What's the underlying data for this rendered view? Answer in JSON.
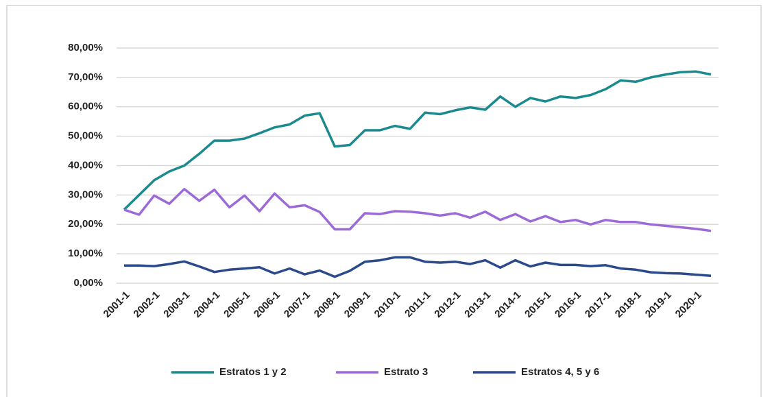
{
  "chart_data": {
    "type": "line",
    "categories": [
      "2001-1",
      null,
      "2002-1",
      null,
      "2003-1",
      null,
      "2004-1",
      null,
      "2005-1",
      null,
      "2006-1",
      null,
      "2007-1",
      null,
      "2008-1",
      null,
      "2009-1",
      null,
      "2010-1",
      null,
      "2011-1",
      null,
      "2012-1",
      null,
      "2013-1",
      null,
      "2014-1",
      null,
      "2015-1",
      null,
      "2016-1",
      null,
      "2017-1",
      null,
      "2018-1",
      null,
      "2019-1",
      null,
      "2020-1",
      null
    ],
    "series": [
      {
        "name": "Estratos 1 y 2",
        "color": "#1b8a8f",
        "values": [
          25,
          30,
          35,
          38,
          40,
          44,
          48.5,
          48.5,
          49.2,
          51,
          53,
          54,
          57,
          57.8,
          46.5,
          47,
          52,
          52,
          53.5,
          52.5,
          58,
          57.5,
          58.8,
          59.8,
          59,
          63.5,
          60,
          63,
          61.8,
          63.5,
          63,
          64,
          66,
          69,
          68.5,
          70,
          71,
          71.8,
          72,
          71
        ]
      },
      {
        "name": "Estrato 3",
        "color": "#9b6ad8",
        "values": [
          25,
          23.3,
          29.8,
          27,
          32,
          28,
          31.8,
          25.8,
          29.8,
          24.5,
          30.5,
          25.8,
          26.5,
          24.2,
          18.3,
          18.3,
          23.8,
          23.5,
          24.5,
          24.3,
          23.8,
          23,
          23.8,
          22.3,
          24.3,
          21.5,
          23.5,
          21,
          22.8,
          20.8,
          21.5,
          20,
          21.5,
          20.8,
          20.8,
          20,
          19.5,
          19,
          18.5,
          17.8
        ]
      },
      {
        "name": "Estratos 4, 5 y 6",
        "color": "#2b4a8b",
        "values": [
          6,
          6,
          5.8,
          6.5,
          7.4,
          5.7,
          3.8,
          4.6,
          5,
          5.4,
          3.3,
          5,
          3,
          4.3,
          2.2,
          4.2,
          7.3,
          7.8,
          8.8,
          8.8,
          7.3,
          7,
          7.3,
          6.5,
          7.8,
          5.3,
          7.8,
          5.7,
          7,
          6.2,
          6.2,
          5.8,
          6.1,
          5,
          4.6,
          3.7,
          3.4,
          3.3,
          2.9,
          2.5
        ]
      }
    ],
    "ylim": [
      0,
      80
    ],
    "yticks": [
      {
        "value": 0,
        "label": "0,00%"
      },
      {
        "value": 10,
        "label": "10,00%"
      },
      {
        "value": 20,
        "label": "20,00%"
      },
      {
        "value": 30,
        "label": "30,00%"
      },
      {
        "value": 40,
        "label": "40,00%"
      },
      {
        "value": 50,
        "label": "50,00%"
      },
      {
        "value": 60,
        "label": "60,00%"
      },
      {
        "value": 70,
        "label": "70,00%"
      },
      {
        "value": 80,
        "label": "80,00%"
      }
    ],
    "grid": true,
    "legend": "bottom"
  }
}
